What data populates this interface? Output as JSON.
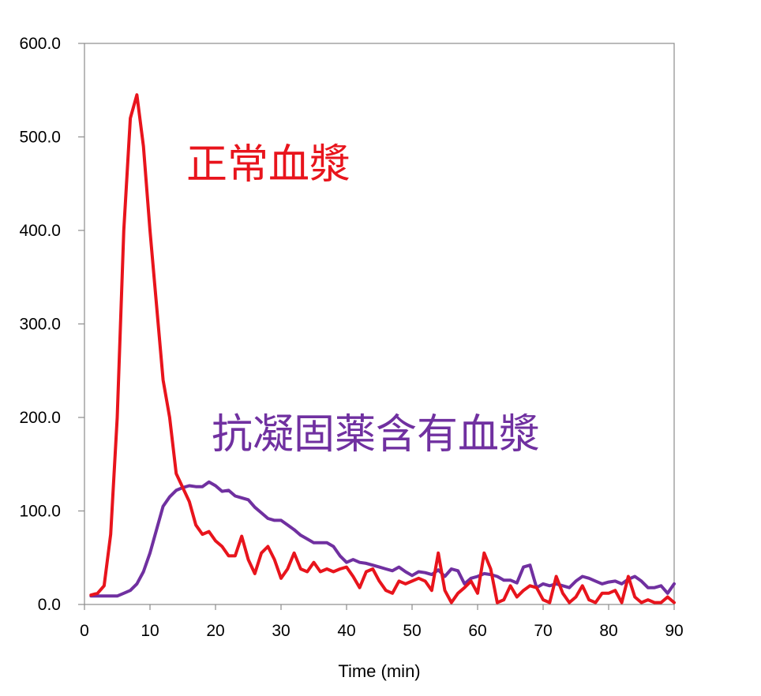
{
  "chart_data": {
    "type": "line",
    "title": "",
    "xlabel": "Time (min)",
    "ylabel": "",
    "xlim": [
      0,
      90
    ],
    "ylim": [
      0,
      600
    ],
    "xticks": [
      "0",
      "10",
      "20",
      "30",
      "40",
      "50",
      "60",
      "70",
      "80",
      "90"
    ],
    "yticks": [
      "0.0",
      "100.0",
      "200.0",
      "300.0",
      "400.0",
      "500.0",
      "600.0"
    ],
    "grid": false,
    "legend": "none",
    "series": [
      {
        "name": "正常血漿",
        "color": "#e8141c",
        "points": [
          [
            1,
            10
          ],
          [
            2,
            12
          ],
          [
            3,
            20
          ],
          [
            4,
            75
          ],
          [
            5,
            200
          ],
          [
            6,
            400
          ],
          [
            7,
            520
          ],
          [
            8,
            545
          ],
          [
            9,
            490
          ],
          [
            10,
            400
          ],
          [
            11,
            320
          ],
          [
            12,
            240
          ],
          [
            13,
            200
          ],
          [
            14,
            140
          ],
          [
            15,
            125
          ],
          [
            16,
            110
          ],
          [
            17,
            85
          ],
          [
            18,
            75
          ],
          [
            19,
            78
          ],
          [
            20,
            68
          ],
          [
            21,
            62
          ],
          [
            22,
            52
          ],
          [
            23,
            52
          ],
          [
            24,
            73
          ],
          [
            25,
            48
          ],
          [
            26,
            33
          ],
          [
            27,
            55
          ],
          [
            28,
            62
          ],
          [
            29,
            48
          ],
          [
            30,
            28
          ],
          [
            31,
            38
          ],
          [
            32,
            55
          ],
          [
            33,
            38
          ],
          [
            34,
            35
          ],
          [
            35,
            45
          ],
          [
            36,
            35
          ],
          [
            37,
            38
          ],
          [
            38,
            35
          ],
          [
            39,
            38
          ],
          [
            40,
            40
          ],
          [
            41,
            30
          ],
          [
            42,
            18
          ],
          [
            43,
            35
          ],
          [
            44,
            38
          ],
          [
            45,
            25
          ],
          [
            46,
            15
          ],
          [
            47,
            12
          ],
          [
            48,
            25
          ],
          [
            49,
            22
          ],
          [
            50,
            25
          ],
          [
            51,
            28
          ],
          [
            52,
            25
          ],
          [
            53,
            15
          ],
          [
            54,
            55
          ],
          [
            55,
            15
          ],
          [
            56,
            2
          ],
          [
            57,
            12
          ],
          [
            58,
            18
          ],
          [
            59,
            25
          ],
          [
            60,
            12
          ],
          [
            61,
            55
          ],
          [
            62,
            38
          ],
          [
            63,
            2
          ],
          [
            64,
            5
          ],
          [
            65,
            20
          ],
          [
            66,
            8
          ],
          [
            67,
            15
          ],
          [
            68,
            20
          ],
          [
            69,
            18
          ],
          [
            70,
            5
          ],
          [
            71,
            2
          ],
          [
            72,
            30
          ],
          [
            73,
            12
          ],
          [
            74,
            2
          ],
          [
            75,
            8
          ],
          [
            76,
            20
          ],
          [
            77,
            5
          ],
          [
            78,
            2
          ],
          [
            79,
            12
          ],
          [
            80,
            12
          ],
          [
            81,
            15
          ],
          [
            82,
            2
          ],
          [
            83,
            30
          ],
          [
            84,
            8
          ],
          [
            85,
            2
          ],
          [
            86,
            5
          ],
          [
            87,
            2
          ],
          [
            88,
            2
          ],
          [
            89,
            8
          ],
          [
            90,
            2
          ]
        ]
      },
      {
        "name": "抗凝固薬含有血漿",
        "color": "#7030a0",
        "points": [
          [
            1,
            9
          ],
          [
            2,
            9
          ],
          [
            3,
            9
          ],
          [
            4,
            9
          ],
          [
            5,
            9
          ],
          [
            6,
            12
          ],
          [
            7,
            15
          ],
          [
            8,
            22
          ],
          [
            9,
            35
          ],
          [
            10,
            55
          ],
          [
            11,
            80
          ],
          [
            12,
            105
          ],
          [
            13,
            115
          ],
          [
            14,
            122
          ],
          [
            15,
            125
          ],
          [
            16,
            127
          ],
          [
            17,
            126
          ],
          [
            18,
            126
          ],
          [
            19,
            131
          ],
          [
            20,
            127
          ],
          [
            21,
            121
          ],
          [
            22,
            122
          ],
          [
            23,
            116
          ],
          [
            24,
            114
          ],
          [
            25,
            112
          ],
          [
            26,
            104
          ],
          [
            27,
            98
          ],
          [
            28,
            92
          ],
          [
            29,
            90
          ],
          [
            30,
            90
          ],
          [
            31,
            85
          ],
          [
            32,
            80
          ],
          [
            33,
            74
          ],
          [
            34,
            70
          ],
          [
            35,
            66
          ],
          [
            36,
            66
          ],
          [
            37,
            66
          ],
          [
            38,
            62
          ],
          [
            39,
            52
          ],
          [
            40,
            45
          ],
          [
            41,
            48
          ],
          [
            42,
            45
          ],
          [
            43,
            44
          ],
          [
            44,
            42
          ],
          [
            45,
            40
          ],
          [
            46,
            38
          ],
          [
            47,
            36
          ],
          [
            48,
            40
          ],
          [
            49,
            35
          ],
          [
            50,
            31
          ],
          [
            51,
            35
          ],
          [
            52,
            34
          ],
          [
            53,
            32
          ],
          [
            54,
            37
          ],
          [
            55,
            30
          ],
          [
            56,
            38
          ],
          [
            57,
            36
          ],
          [
            58,
            22
          ],
          [
            59,
            28
          ],
          [
            60,
            30
          ],
          [
            61,
            33
          ],
          [
            62,
            32
          ],
          [
            63,
            30
          ],
          [
            64,
            26
          ],
          [
            65,
            26
          ],
          [
            66,
            23
          ],
          [
            67,
            40
          ],
          [
            68,
            42
          ],
          [
            69,
            18
          ],
          [
            70,
            22
          ],
          [
            71,
            20
          ],
          [
            72,
            22
          ],
          [
            73,
            20
          ],
          [
            74,
            18
          ],
          [
            75,
            25
          ],
          [
            76,
            30
          ],
          [
            77,
            28
          ],
          [
            78,
            25
          ],
          [
            79,
            22
          ],
          [
            80,
            24
          ],
          [
            81,
            25
          ],
          [
            82,
            22
          ],
          [
            83,
            27
          ],
          [
            84,
            30
          ],
          [
            85,
            25
          ],
          [
            86,
            18
          ],
          [
            87,
            18
          ],
          [
            88,
            20
          ],
          [
            89,
            12
          ],
          [
            90,
            22
          ]
        ]
      }
    ]
  }
}
